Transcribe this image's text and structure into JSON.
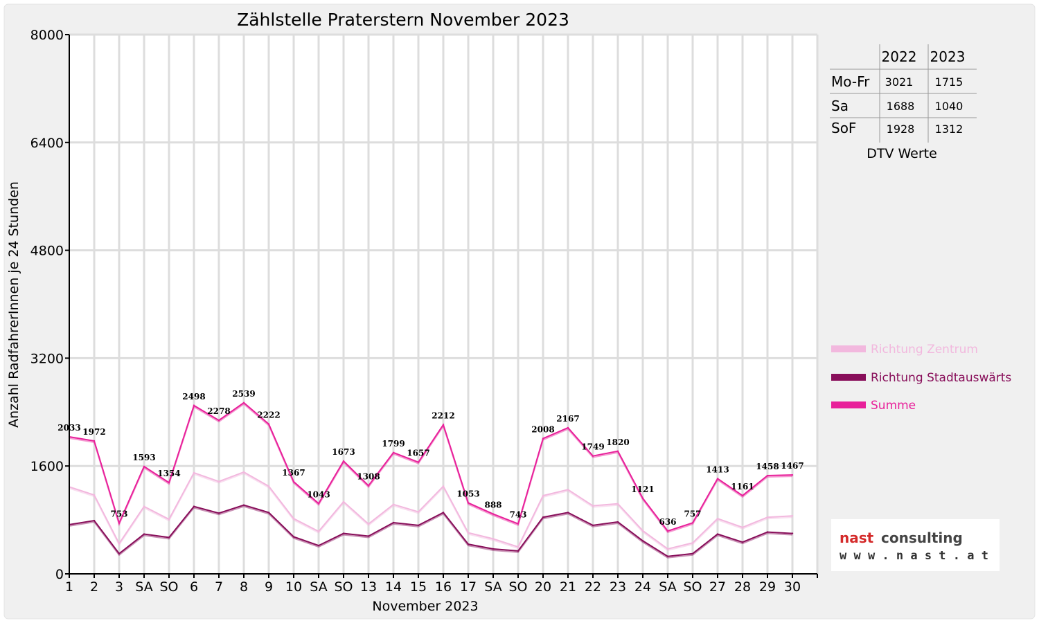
{
  "chart_data": {
    "type": "line",
    "title": "Zählstelle Praterstern November 2023",
    "xlabel": "November 2023",
    "ylabel": "Anzahl RadfahrerInnen je 24 Stunden",
    "ylim": [
      0,
      8000
    ],
    "yticks": [
      "0",
      "1600",
      "3200",
      "4800",
      "6400",
      "8000"
    ],
    "grid": true,
    "legend_position": "right",
    "categories": [
      "1",
      "2",
      "3",
      "SA",
      "SO",
      "6",
      "7",
      "8",
      "9",
      "10",
      "SA",
      "SO",
      "13",
      "14",
      "15",
      "16",
      "17",
      "SA",
      "SO",
      "20",
      "21",
      "22",
      "23",
      "24",
      "SA",
      "SO",
      "27",
      "28",
      "29",
      "30"
    ],
    "red_categories": [
      0,
      4,
      11,
      18,
      25
    ],
    "series": [
      {
        "name": "Richtung Zentrum",
        "color": "#f2b8de",
        "values": [
          1290,
          1170,
          450,
          1000,
          810,
          1500,
          1370,
          1510,
          1300,
          820,
          630,
          1070,
          740,
          1030,
          920,
          1300,
          610,
          520,
          400,
          1160,
          1250,
          1010,
          1040,
          640,
          370,
          460,
          820,
          690,
          840,
          860
        ]
      },
      {
        "name": "Richtung Stadtauswärts",
        "color": "#880e5a",
        "values": [
          730,
          790,
          300,
          590,
          540,
          1000,
          900,
          1020,
          910,
          550,
          420,
          600,
          560,
          760,
          720,
          910,
          440,
          370,
          340,
          840,
          910,
          720,
          770,
          490,
          260,
          300,
          590,
          470,
          620,
          600
        ]
      },
      {
        "name": "Summe",
        "color": "#e8209a",
        "values": [
          2033,
          1972,
          753,
          1593,
          1354,
          2498,
          2278,
          2539,
          2222,
          1367,
          1043,
          1673,
          1308,
          1799,
          1657,
          2212,
          1053,
          888,
          743,
          2008,
          2167,
          1749,
          1820,
          1121,
          636,
          757,
          1413,
          1161,
          1458,
          1467
        ]
      }
    ],
    "data_labels": [
      "2033",
      "1972",
      "753",
      "1593",
      "1354",
      "2498",
      "2278",
      "2539",
      "2222",
      "1367",
      "1043",
      "1673",
      "1308",
      "1799",
      "1657",
      "2212",
      "1053",
      "888",
      "743",
      "2008",
      "2167",
      "1749",
      "1820",
      "1121",
      "636",
      "757",
      "1413",
      "1161",
      "1458",
      "1467"
    ]
  },
  "dtv_table": {
    "years": [
      "2022",
      "2023"
    ],
    "rows": [
      {
        "label": "Mo-Fr",
        "v2022": "3021",
        "v2023": "1715"
      },
      {
        "label": "Sa",
        "v2022": "1688",
        "v2023": "1040"
      },
      {
        "label": "SoF",
        "v2022": "1928",
        "v2023": "1312"
      }
    ],
    "caption": "DTV Werte"
  },
  "logo": {
    "word1": "nast",
    "word2": "consulting",
    "url": "w w w . n a s t . a t",
    "colors": {
      "nast": "#d42a2a",
      "consulting": "#444444"
    }
  },
  "colors": {
    "background_panel": "#f0f0f0",
    "weekend_red": "#ee0000",
    "grid": "#dddddd"
  }
}
